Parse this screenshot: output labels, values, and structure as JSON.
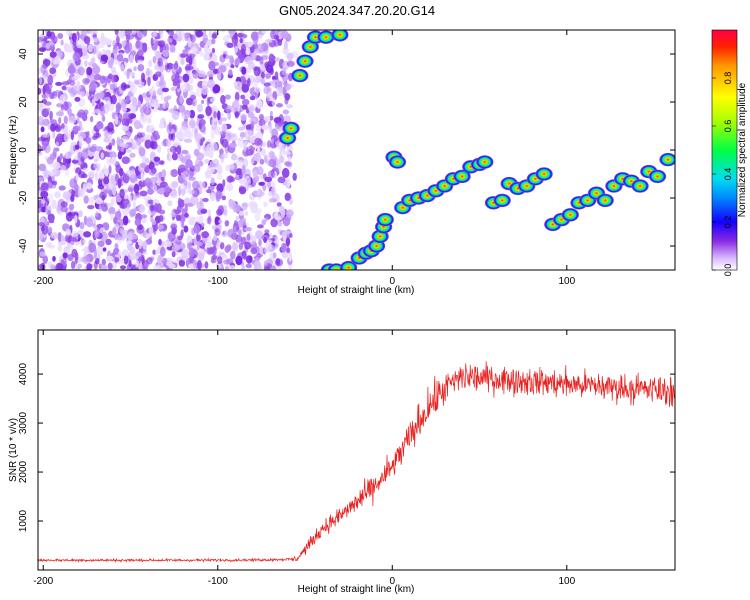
{
  "figure": {
    "title": "GN05.2024.347.20.20.G14"
  },
  "chart_data": [
    {
      "type": "heatmap",
      "xlabel": "Height of straight line (km)",
      "ylabel": "Frequency (Hz)",
      "xlim": [
        -203,
        162
      ],
      "ylim": [
        -50,
        50
      ],
      "xticks": [
        -200,
        -100,
        0,
        100
      ],
      "yticks": [
        -40,
        -20,
        0,
        20,
        40
      ],
      "colorbar": {
        "label": "Normalized spectral amplitude",
        "range": [
          0,
          1
        ],
        "ticks": [
          "0.0",
          "0.2",
          "0.4",
          "0.6",
          "0.8"
        ]
      },
      "noise_region": {
        "x_range": [
          -203,
          -58
        ],
        "y_range": [
          -50,
          50
        ]
      },
      "ridge": [
        {
          "x": -60,
          "y": 5
        },
        {
          "x": -58,
          "y": 9
        },
        {
          "x": -53,
          "y": 31
        },
        {
          "x": -50,
          "y": 37
        },
        {
          "x": -47,
          "y": 43
        },
        {
          "x": -44,
          "y": 47
        },
        {
          "x": -38,
          "y": 47
        },
        {
          "x": -30,
          "y": 48
        },
        {
          "x": -36,
          "y": -50
        },
        {
          "x": -32,
          "y": -50
        },
        {
          "x": -25,
          "y": -49
        },
        {
          "x": -19,
          "y": -45
        },
        {
          "x": -15,
          "y": -43
        },
        {
          "x": -12,
          "y": -42
        },
        {
          "x": -9,
          "y": -40
        },
        {
          "x": -7,
          "y": -36
        },
        {
          "x": -5,
          "y": -32
        },
        {
          "x": -4,
          "y": -29
        },
        {
          "x": 1,
          "y": -3
        },
        {
          "x": 3,
          "y": -5
        },
        {
          "x": 6,
          "y": -24
        },
        {
          "x": 10,
          "y": -21
        },
        {
          "x": 15,
          "y": -20
        },
        {
          "x": 20,
          "y": -19
        },
        {
          "x": 25,
          "y": -17
        },
        {
          "x": 30,
          "y": -15
        },
        {
          "x": 35,
          "y": -12
        },
        {
          "x": 40,
          "y": -11
        },
        {
          "x": 45,
          "y": -7
        },
        {
          "x": 50,
          "y": -6
        },
        {
          "x": 53,
          "y": -5
        },
        {
          "x": 58,
          "y": -22
        },
        {
          "x": 63,
          "y": -21
        },
        {
          "x": 67,
          "y": -14
        },
        {
          "x": 72,
          "y": -16
        },
        {
          "x": 77,
          "y": -15
        },
        {
          "x": 82,
          "y": -12
        },
        {
          "x": 87,
          "y": -10
        },
        {
          "x": 92,
          "y": -31
        },
        {
          "x": 97,
          "y": -29
        },
        {
          "x": 102,
          "y": -27
        },
        {
          "x": 107,
          "y": -22
        },
        {
          "x": 112,
          "y": -21
        },
        {
          "x": 117,
          "y": -18
        },
        {
          "x": 122,
          "y": -21
        },
        {
          "x": 127,
          "y": -15
        },
        {
          "x": 132,
          "y": -12
        },
        {
          "x": 137,
          "y": -13
        },
        {
          "x": 142,
          "y": -15
        },
        {
          "x": 147,
          "y": -9
        },
        {
          "x": 152,
          "y": -11
        },
        {
          "x": 158,
          "y": -4
        }
      ]
    },
    {
      "type": "line",
      "xlabel": "Height of straight line (km)",
      "ylabel": "SNR (10 * v/v)",
      "xlim": [
        -203,
        162
      ],
      "ylim": [
        0,
        4900
      ],
      "xticks": [
        -200,
        -100,
        0,
        100
      ],
      "yticks": [
        1000,
        2000,
        3000,
        4000
      ],
      "series": [
        {
          "color": "#e8201e",
          "points": [
            {
              "x": -203,
              "y": 200
            },
            {
              "x": -160,
              "y": 200
            },
            {
              "x": -120,
              "y": 200
            },
            {
              "x": -80,
              "y": 205
            },
            {
              "x": -55,
              "y": 220
            },
            {
              "x": -48,
              "y": 500
            },
            {
              "x": -40,
              "y": 850
            },
            {
              "x": -30,
              "y": 1100
            },
            {
              "x": -20,
              "y": 1400
            },
            {
              "x": -10,
              "y": 1700
            },
            {
              "x": 0,
              "y": 2100
            },
            {
              "x": 10,
              "y": 2700
            },
            {
              "x": 20,
              "y": 3300
            },
            {
              "x": 30,
              "y": 3700
            },
            {
              "x": 40,
              "y": 3950
            },
            {
              "x": 60,
              "y": 3900
            },
            {
              "x": 80,
              "y": 3850
            },
            {
              "x": 100,
              "y": 3800
            },
            {
              "x": 120,
              "y": 3750
            },
            {
              "x": 140,
              "y": 3700
            },
            {
              "x": 162,
              "y": 3650
            }
          ],
          "noise": [
            {
              "x": -203,
              "y": 40
            },
            {
              "x": -60,
              "y": 40
            },
            {
              "x": -50,
              "y": 160
            },
            {
              "x": -20,
              "y": 350
            },
            {
              "x": 20,
              "y": 550
            },
            {
              "x": 60,
              "y": 420
            },
            {
              "x": 162,
              "y": 450
            }
          ]
        }
      ]
    }
  ]
}
